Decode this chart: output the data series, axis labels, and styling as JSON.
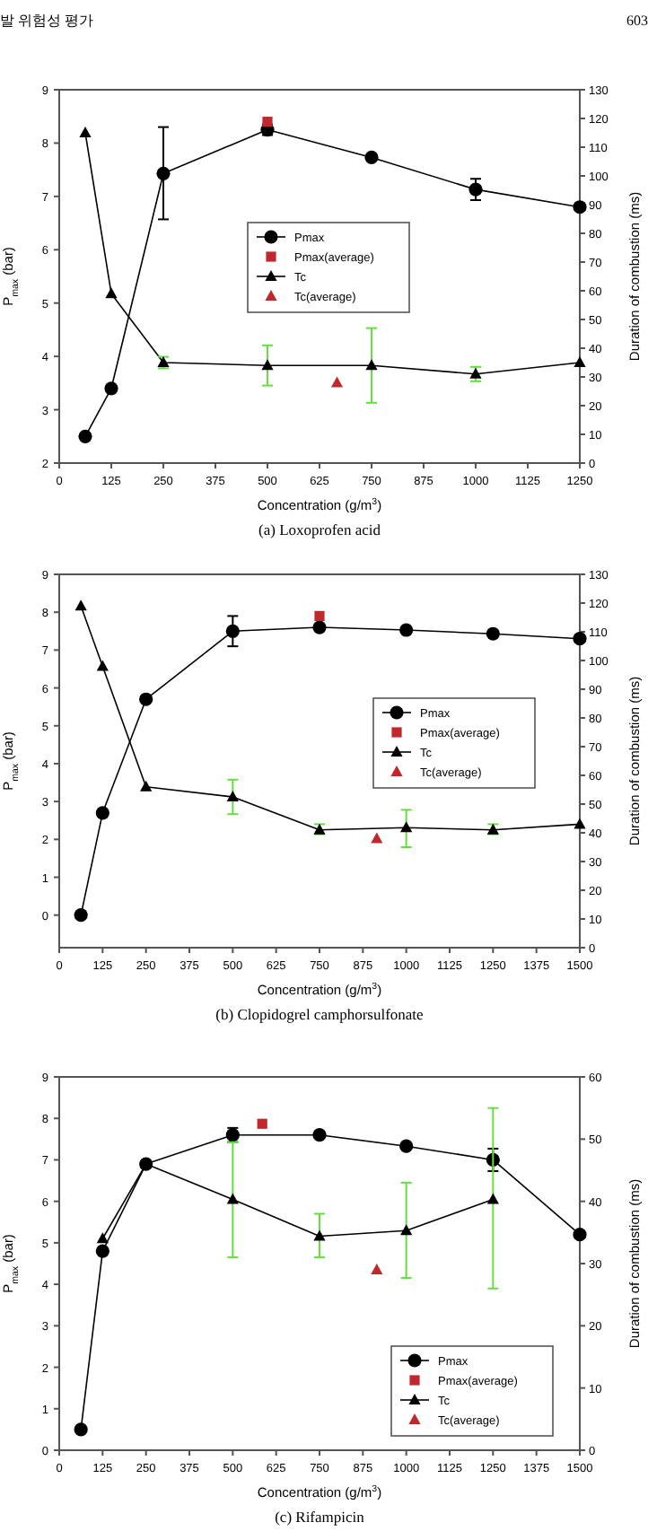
{
  "chart_data": [
    {
      "type": "line",
      "title": "(a) Loxoprofen acid",
      "annotations": [
        "발 위험성 평가",
        "603"
      ],
      "xlabel": "Concentration (g/m$^{3}$)",
      "ylabel": "P$_{max}$ (bar)",
      "y2label": "Duration of combustion (ms)",
      "xlim": [
        0,
        1250
      ],
      "xticks": [
        0,
        125,
        250,
        375,
        500,
        625,
        750,
        875,
        1000,
        1125,
        1250
      ],
      "ylim": [
        2,
        9
      ],
      "yticks": [
        2,
        3,
        4,
        5,
        6,
        7,
        8,
        9
      ],
      "y2lim": [
        0,
        130
      ],
      "y2ticks": [
        0,
        10,
        20,
        30,
        40,
        50,
        60,
        70,
        80,
        90,
        100,
        110,
        120,
        130
      ],
      "legend": "center",
      "grid": false,
      "series": [
        {
          "name": "Pmax",
          "type": "line",
          "marker": "circle",
          "color": "#000000",
          "x": [
            62.5,
            125,
            250,
            500,
            750,
            1000,
            1250
          ],
          "values": [
            2.5,
            3.4,
            7.43,
            8.25,
            7.73,
            7.13,
            6.8
          ],
          "errors": [
            null,
            null,
            [
              6.57,
              8.3
            ],
            [
              8.15,
              8.35
            ],
            null,
            [
              6.93,
              7.33
            ],
            null
          ]
        },
        {
          "name": "Pmax(average)",
          "type": "scatter",
          "marker": "square",
          "color": "#c0282d",
          "x": [
            500
          ],
          "values": [
            8.4
          ]
        },
        {
          "name": "Tc",
          "type": "line",
          "marker": "triangle",
          "color": "#000000",
          "axis": "y2",
          "x": [
            62.5,
            125,
            250,
            500,
            750,
            1000,
            1250
          ],
          "values": [
            115,
            59,
            35,
            34,
            34,
            31,
            35
          ],
          "errors": [
            null,
            null,
            [
              33,
              37
            ],
            [
              27,
              41
            ],
            [
              21,
              47
            ],
            [
              28.5,
              33.5
            ],
            null
          ]
        },
        {
          "name": "Tc(average)",
          "type": "scatter",
          "marker": "triangle",
          "color": "#c0282d",
          "axis": "y2",
          "x": [
            667
          ],
          "values": [
            28
          ]
        }
      ]
    },
    {
      "type": "line",
      "title": "(b) Clopidogrel camphorsulfonate",
      "xlabel": "Concentration (g/m$^{3}$)",
      "ylabel": "P$_{max}$ (bar)",
      "y2label": "Duration of combustion (ms)",
      "xlim": [
        0,
        1500
      ],
      "xticks": [
        0,
        125,
        250,
        375,
        500,
        625,
        750,
        875,
        1000,
        1125,
        1250,
        1375,
        1500
      ],
      "ylim": [
        -0.86,
        9
      ],
      "yticks": [
        0,
        1,
        2,
        3,
        4,
        5,
        6,
        7,
        8,
        9
      ],
      "y2lim": [
        0,
        130
      ],
      "y2ticks": [
        0,
        10,
        20,
        30,
        40,
        50,
        60,
        70,
        80,
        90,
        100,
        110,
        120,
        130
      ],
      "legend": "right",
      "grid": false,
      "series": [
        {
          "name": "Pmax",
          "type": "line",
          "marker": "circle",
          "color": "#000000",
          "x": [
            62.5,
            125,
            250,
            500,
            750,
            1000,
            1250,
            1500
          ],
          "values": [
            0,
            2.7,
            5.7,
            7.5,
            7.6,
            7.53,
            7.43,
            7.3
          ],
          "errors": [
            null,
            null,
            null,
            [
              7.1,
              7.9
            ],
            null,
            null,
            null,
            null
          ]
        },
        {
          "name": "Pmax(average)",
          "type": "scatter",
          "marker": "square",
          "color": "#c0282d",
          "x": [
            750
          ],
          "values": [
            7.9
          ]
        },
        {
          "name": "Tc",
          "type": "line",
          "marker": "triangle",
          "color": "#000000",
          "axis": "y2",
          "x": [
            62.5,
            125,
            250,
            500,
            750,
            1000,
            1250,
            1500
          ],
          "values": [
            119,
            98,
            56,
            52.5,
            41,
            41.8,
            41,
            43
          ],
          "errors": [
            null,
            null,
            null,
            [
              46.5,
              58.5
            ],
            [
              39.5,
              43
            ],
            [
              35,
              48
            ],
            [
              39.5,
              43
            ],
            null
          ]
        },
        {
          "name": "Tc(average)",
          "type": "scatter",
          "marker": "triangle",
          "color": "#c0282d",
          "axis": "y2",
          "x": [
            915
          ],
          "values": [
            38
          ]
        }
      ]
    },
    {
      "type": "line",
      "title": "(c) Rifampicin",
      "xlabel": "Concentration (g/m$^{3}$)",
      "ylabel": "P$_{max}$ (bar)",
      "y2label": "Duration of combustion (ms)",
      "xlim": [
        0,
        1500
      ],
      "xticks": [
        0,
        125,
        250,
        375,
        500,
        625,
        750,
        875,
        1000,
        1125,
        1250,
        1375,
        1500
      ],
      "ylim": [
        0,
        9
      ],
      "yticks": [
        0,
        1,
        2,
        3,
        4,
        5,
        6,
        7,
        8,
        9
      ],
      "y2lim": [
        0,
        60
      ],
      "y2ticks": [
        0,
        10,
        20,
        30,
        40,
        50,
        60
      ],
      "legend": "bottom right",
      "grid": false,
      "series": [
        {
          "name": "Pmax",
          "type": "line",
          "marker": "circle",
          "color": "#000000",
          "x": [
            62.5,
            125,
            250,
            500,
            750,
            1000,
            1250,
            1500
          ],
          "values": [
            0.5,
            4.8,
            6.9,
            7.6,
            7.6,
            7.33,
            7.0,
            5.2
          ],
          "errors": [
            null,
            null,
            null,
            [
              7.43,
              7.77
            ],
            null,
            null,
            [
              6.73,
              7.27
            ],
            null
          ]
        },
        {
          "name": "Pmax(average)",
          "type": "scatter",
          "marker": "square",
          "color": "#c0282d",
          "x": [
            585
          ],
          "values": [
            7.87
          ]
        },
        {
          "name": "Tc",
          "type": "line",
          "marker": "triangle",
          "color": "#000000",
          "axis": "y2",
          "x": [
            125,
            250,
            500,
            750,
            1000,
            1250
          ],
          "values": [
            34,
            46,
            40.3,
            34.4,
            35.3,
            40.3
          ],
          "errors": [
            null,
            null,
            [
              31,
              49.5
            ],
            [
              31,
              38
            ],
            [
              27.7,
              43
            ],
            [
              26,
              55
            ]
          ]
        },
        {
          "name": "Tc(average)",
          "type": "scatter",
          "marker": "triangle",
          "color": "#c0282d",
          "axis": "y2",
          "x": [
            915
          ],
          "values": [
            29
          ]
        }
      ]
    }
  ]
}
